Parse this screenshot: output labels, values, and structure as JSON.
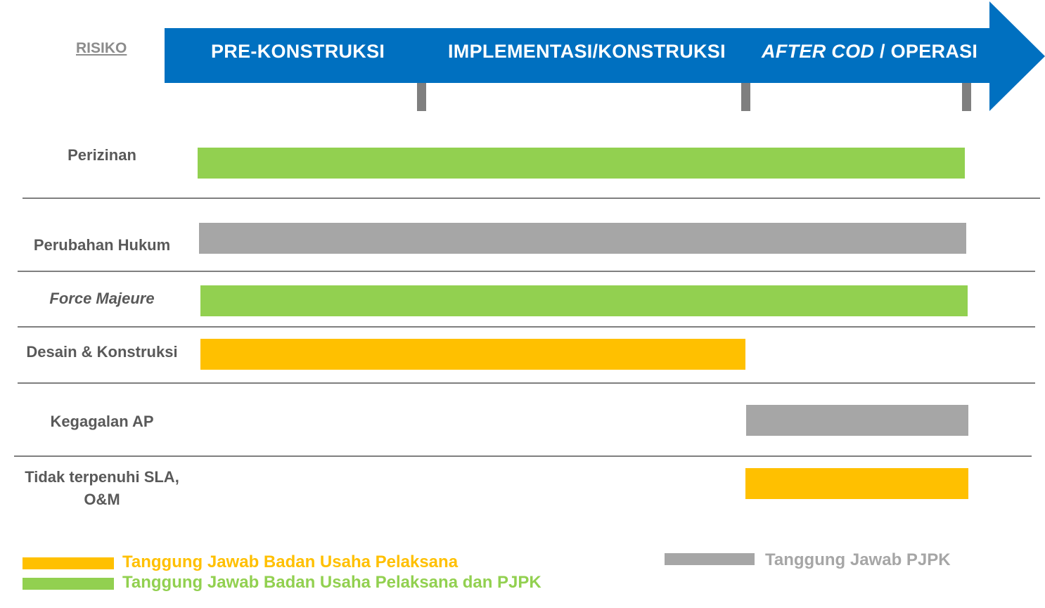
{
  "header": {
    "risk_column_label": "RISIKO",
    "phases": [
      {
        "label": "PRE-KONSTRUKSI"
      },
      {
        "label": "IMPLEMENTASI/KONSTRUKSI"
      },
      {
        "label_italic": "AFTER COD",
        "label_rest": " / OPERASI"
      }
    ]
  },
  "colors": {
    "arrow": "#0070c0",
    "bupel": "#ffc000",
    "shared": "#92d050",
    "pjpk": "#a6a6a6",
    "tick": "#7f7f7f"
  },
  "risks": [
    {
      "label": "Perizinan",
      "responsibility": "shared",
      "span": "Pre-Konstruksi – After COD / Operasi"
    },
    {
      "label": "Perubahan Hukum",
      "responsibility": "pjpk",
      "span": "Pre-Konstruksi – After COD / Operasi"
    },
    {
      "label": "Force Majeure",
      "responsibility": "shared",
      "span": "Pre-Konstruksi – After COD / Operasi"
    },
    {
      "label": "Desain & Konstruksi",
      "responsibility": "bupel",
      "span": "Pre-Konstruksi – Implementasi/Konstruksi"
    },
    {
      "label": "Kegagalan AP",
      "responsibility": "pjpk",
      "span": "After COD / Operasi"
    },
    {
      "label": "Tidak terpenuhi SLA, O&M",
      "responsibility": "bupel",
      "span": "After COD / Operasi"
    }
  ],
  "legend": {
    "bupel": "Tanggung Jawab Badan Usaha Pelaksana",
    "shared": "Tanggung Jawab Badan Usaha Pelaksana dan PJPK",
    "pjpk": "Tanggung Jawab PJPK"
  }
}
